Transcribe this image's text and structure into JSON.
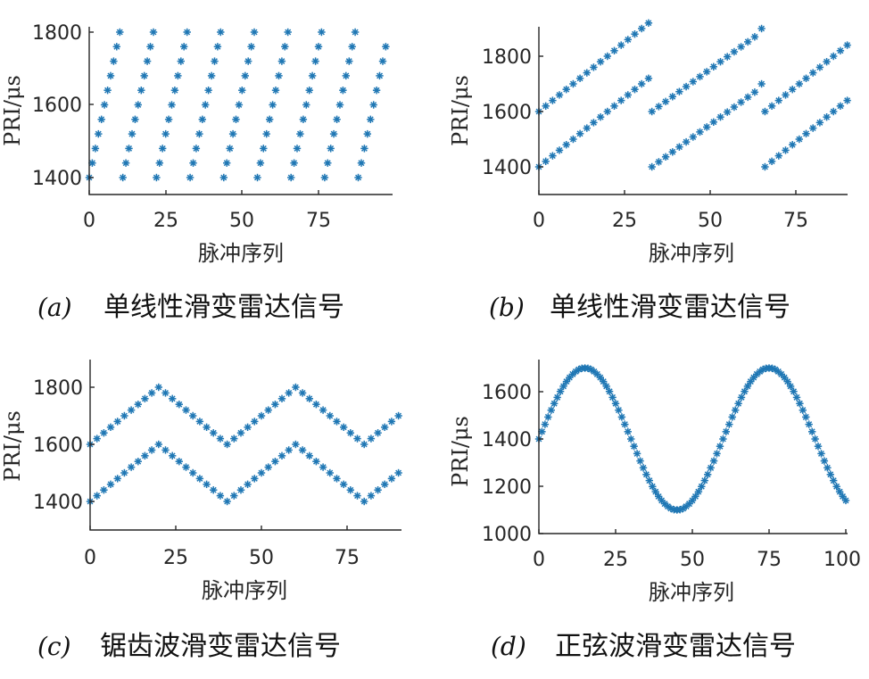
{
  "chart_data": [
    {
      "id": "a",
      "type": "scatter",
      "marker": "asterisk",
      "color": "#1f77b4",
      "ylabel": "PRI/μs",
      "xlabel": "脉冲序列",
      "xlim": [
        0,
        98
      ],
      "ylim": [
        1350,
        1820
      ],
      "xticks": [
        0,
        25,
        50,
        75
      ],
      "yticks": [
        1400,
        1600,
        1800
      ],
      "series": [
        {
          "pattern": "repeated linear ramp, period 11 pulses, step 40",
          "x": [
            0,
            1,
            2,
            3,
            4,
            5,
            6,
            7,
            8,
            9,
            10,
            11,
            12,
            13,
            14,
            15,
            16,
            17,
            18,
            19,
            20,
            21,
            22,
            23,
            24,
            25,
            26,
            27,
            28,
            29,
            30,
            31,
            32,
            33,
            34,
            35,
            36,
            37,
            38,
            39,
            40,
            41,
            42,
            43,
            44,
            45,
            46,
            47,
            48,
            49,
            50,
            51,
            52,
            53,
            54,
            55,
            56,
            57,
            58,
            59,
            60,
            61,
            62,
            63,
            64,
            65,
            66,
            67,
            68,
            69,
            70,
            71,
            72,
            73,
            74,
            75,
            76,
            77,
            78,
            79,
            80,
            81,
            82,
            83,
            84,
            85,
            86,
            87,
            88,
            89,
            90,
            91,
            92,
            93,
            94,
            95,
            96,
            97
          ],
          "y": [
            1400,
            1440,
            1480,
            1520,
            1560,
            1600,
            1640,
            1680,
            1720,
            1760,
            1800,
            1400,
            1440,
            1480,
            1520,
            1560,
            1600,
            1640,
            1680,
            1720,
            1760,
            1800,
            1400,
            1440,
            1480,
            1520,
            1560,
            1600,
            1640,
            1680,
            1720,
            1760,
            1800,
            1400,
            1440,
            1480,
            1520,
            1560,
            1600,
            1640,
            1680,
            1720,
            1760,
            1800,
            1400,
            1440,
            1480,
            1520,
            1560,
            1600,
            1640,
            1680,
            1720,
            1760,
            1800,
            1400,
            1440,
            1480,
            1520,
            1560,
            1600,
            1640,
            1680,
            1720,
            1760,
            1800,
            1400,
            1440,
            1480,
            1520,
            1560,
            1600,
            1640,
            1680,
            1720,
            1760,
            1800,
            1400,
            1440,
            1480,
            1520,
            1560,
            1600,
            1640,
            1680,
            1720,
            1760,
            1800,
            1400,
            1440,
            1480,
            1520,
            1560,
            1600,
            1640,
            1680,
            1720,
            1760
          ]
        }
      ],
      "caption_letter": "(a)",
      "caption": "单线性滑变雷达信号"
    },
    {
      "id": "b",
      "type": "scatter",
      "marker": "asterisk",
      "color": "#1f77b4",
      "ylabel": "PRI/μs",
      "xlabel": "脉冲序列",
      "xlim": [
        0,
        90
      ],
      "ylim": [
        1300,
        1910
      ],
      "xticks": [
        0,
        25,
        50,
        75
      ],
      "yticks": [
        1400,
        1600,
        1800
      ],
      "series": [
        {
          "x": [
            0,
            2,
            4,
            6,
            8,
            10,
            12,
            14,
            16,
            18,
            20,
            22,
            24,
            26,
            28,
            30,
            32
          ],
          "y": [
            1400,
            1420,
            1440,
            1460,
            1480,
            1500,
            1520,
            1540,
            1560,
            1580,
            1600,
            1620,
            1640,
            1660,
            1680,
            1700,
            1720
          ]
        },
        {
          "x": [
            0,
            2,
            4,
            6,
            8,
            10,
            12,
            14,
            16,
            18,
            20,
            22,
            24,
            26,
            28,
            30,
            32
          ],
          "y": [
            1600,
            1620,
            1640,
            1660,
            1680,
            1700,
            1720,
            1740,
            1760,
            1780,
            1800,
            1820,
            1840,
            1860,
            1880,
            1900,
            1920
          ]
        },
        {
          "x": [
            33,
            35,
            37,
            39,
            41,
            43,
            45,
            47,
            49,
            51,
            53,
            55,
            57,
            59,
            61,
            63,
            65
          ],
          "y": [
            1400,
            1418,
            1436,
            1454,
            1472,
            1490,
            1508,
            1526,
            1544,
            1562,
            1580,
            1598,
            1616,
            1634,
            1652,
            1670,
            1700
          ]
        },
        {
          "x": [
            33,
            35,
            37,
            39,
            41,
            43,
            45,
            47,
            49,
            51,
            53,
            55,
            57,
            59,
            61,
            63,
            65
          ],
          "y": [
            1600,
            1618,
            1636,
            1654,
            1672,
            1690,
            1708,
            1726,
            1744,
            1762,
            1780,
            1798,
            1816,
            1834,
            1852,
            1870,
            1900
          ]
        },
        {
          "x": [
            66,
            68,
            70,
            72,
            74,
            76,
            78,
            80,
            82,
            84,
            86,
            88,
            90
          ],
          "y": [
            1400,
            1420,
            1440,
            1460,
            1480,
            1500,
            1520,
            1540,
            1560,
            1580,
            1600,
            1620,
            1640
          ]
        },
        {
          "x": [
            66,
            68,
            70,
            72,
            74,
            76,
            78,
            80,
            82,
            84,
            86,
            88,
            90
          ],
          "y": [
            1600,
            1620,
            1640,
            1660,
            1680,
            1700,
            1720,
            1740,
            1760,
            1780,
            1800,
            1820,
            1840
          ]
        }
      ],
      "caption_letter": "(b)",
      "caption": "单线性滑变雷达信号"
    },
    {
      "id": "c",
      "type": "scatter",
      "marker": "asterisk",
      "color": "#1f77b4",
      "ylabel": "PRI/μs",
      "xlabel": "脉冲序列",
      "xlim": [
        0,
        91
      ],
      "ylim": [
        1300,
        1900
      ],
      "xticks": [
        0,
        25,
        50,
        75
      ],
      "yticks": [
        1400,
        1600,
        1800
      ],
      "series": [
        {
          "pattern": "triangle wave, amplitude 1400–1600, period 40",
          "x": [
            0,
            2,
            4,
            6,
            8,
            10,
            12,
            14,
            16,
            18,
            20,
            22,
            24,
            26,
            28,
            30,
            32,
            34,
            36,
            38,
            40,
            42,
            44,
            46,
            48,
            50,
            52,
            54,
            56,
            58,
            60,
            62,
            64,
            66,
            68,
            70,
            72,
            74,
            76,
            78,
            80,
            82,
            84,
            86,
            88,
            90
          ],
          "y": [
            1400,
            1420,
            1440,
            1460,
            1480,
            1500,
            1520,
            1540,
            1560,
            1580,
            1600,
            1580,
            1560,
            1540,
            1520,
            1500,
            1480,
            1460,
            1440,
            1420,
            1400,
            1420,
            1440,
            1460,
            1480,
            1500,
            1520,
            1540,
            1560,
            1580,
            1600,
            1580,
            1560,
            1540,
            1520,
            1500,
            1480,
            1460,
            1440,
            1420,
            1400,
            1420,
            1440,
            1460,
            1480,
            1500
          ]
        },
        {
          "pattern": "triangle wave, amplitude 1600–1800, period 40",
          "x": [
            0,
            2,
            4,
            6,
            8,
            10,
            12,
            14,
            16,
            18,
            20,
            22,
            24,
            26,
            28,
            30,
            32,
            34,
            36,
            38,
            40,
            42,
            44,
            46,
            48,
            50,
            52,
            54,
            56,
            58,
            60,
            62,
            64,
            66,
            68,
            70,
            72,
            74,
            76,
            78,
            80,
            82,
            84,
            86,
            88,
            90
          ],
          "y": [
            1600,
            1620,
            1640,
            1660,
            1680,
            1700,
            1720,
            1740,
            1760,
            1780,
            1800,
            1780,
            1760,
            1740,
            1720,
            1700,
            1680,
            1660,
            1640,
            1620,
            1600,
            1620,
            1640,
            1660,
            1680,
            1700,
            1720,
            1740,
            1760,
            1780,
            1800,
            1780,
            1760,
            1740,
            1720,
            1700,
            1680,
            1660,
            1640,
            1620,
            1600,
            1620,
            1640,
            1660,
            1680,
            1700
          ]
        }
      ],
      "caption_letter": "(c)",
      "caption": "锯齿波滑变雷达信号"
    },
    {
      "id": "d",
      "type": "scatter",
      "marker": "asterisk",
      "color": "#1f77b4",
      "ylabel": "PRI/μs",
      "xlabel": "脉冲序列",
      "xlim": [
        0,
        100
      ],
      "ylim": [
        1000,
        1720
      ],
      "xticks": [
        0,
        25,
        50,
        75,
        100
      ],
      "yticks": [
        1000,
        1200,
        1400,
        1600
      ],
      "series": [
        {
          "pattern": "sinusoid, mean 1400, amplitude 300, period 60",
          "x": [
            0,
            1,
            2,
            3,
            4,
            5,
            6,
            7,
            8,
            9,
            10,
            11,
            12,
            13,
            14,
            15,
            16,
            17,
            18,
            19,
            20,
            21,
            22,
            23,
            24,
            25,
            26,
            27,
            28,
            29,
            30,
            31,
            32,
            33,
            34,
            35,
            36,
            37,
            38,
            39,
            40,
            41,
            42,
            43,
            44,
            45,
            46,
            47,
            48,
            49,
            50,
            51,
            52,
            53,
            54,
            55,
            56,
            57,
            58,
            59,
            60,
            61,
            62,
            63,
            64,
            65,
            66,
            67,
            68,
            69,
            70,
            71,
            72,
            73,
            74,
            75,
            76,
            77,
            78,
            79,
            80,
            81,
            82,
            83,
            84,
            85,
            86,
            87,
            88,
            89,
            90,
            91,
            92,
            93,
            94,
            95,
            96,
            97,
            98,
            99,
            100
          ],
          "y": [
            1400,
            1431,
            1462,
            1493,
            1522,
            1550,
            1576,
            1601,
            1623,
            1643,
            1660,
            1674,
            1685,
            1694,
            1699,
            1700,
            1699,
            1694,
            1685,
            1674,
            1660,
            1643,
            1623,
            1601,
            1576,
            1550,
            1522,
            1493,
            1462,
            1431,
            1400,
            1369,
            1338,
            1307,
            1278,
            1250,
            1224,
            1199,
            1177,
            1157,
            1140,
            1126,
            1115,
            1106,
            1101,
            1100,
            1101,
            1106,
            1115,
            1126,
            1140,
            1157,
            1177,
            1199,
            1224,
            1250,
            1278,
            1307,
            1338,
            1369,
            1400,
            1431,
            1462,
            1493,
            1522,
            1550,
            1576,
            1601,
            1623,
            1643,
            1660,
            1674,
            1685,
            1694,
            1699,
            1700,
            1699,
            1694,
            1685,
            1674,
            1660,
            1643,
            1623,
            1601,
            1576,
            1550,
            1522,
            1493,
            1462,
            1431,
            1400,
            1369,
            1338,
            1307,
            1278,
            1250,
            1224,
            1199,
            1177,
            1157,
            1140
          ]
        }
      ],
      "caption_letter": "(d)",
      "caption": "正弦波滑变雷达信号"
    }
  ]
}
